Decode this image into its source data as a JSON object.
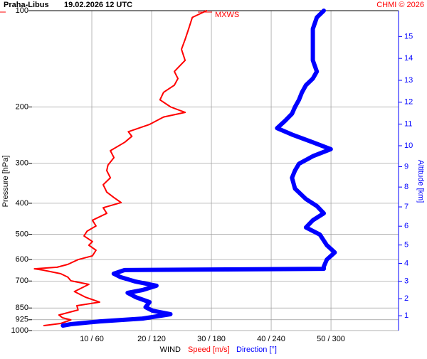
{
  "chart_data": {
    "type": "wind-profile",
    "title": "Praha-Libus",
    "subtitle": "19.02.2026 12 UTC",
    "credit": "CHMI © 2026",
    "annotation": "MXWS",
    "y_label": "Pressure [hPa]",
    "y2_label": "Altitude [km]",
    "x_label": "WIND",
    "ylim": [
      1000,
      100
    ],
    "log_y": true,
    "yticks": [
      100,
      200,
      300,
      400,
      500,
      600,
      700,
      850,
      925,
      1000
    ],
    "y2ticks": [
      1,
      2,
      3,
      4,
      5,
      6,
      7,
      8,
      9,
      10,
      11,
      12,
      13,
      14,
      15
    ],
    "xlim": [
      0,
      61.3
    ],
    "x2lim": [
      0,
      368
    ],
    "xticks": [
      {
        "value": 10,
        "label": "10 / 60"
      },
      {
        "value": 20,
        "label": "20 / 120"
      },
      {
        "value": 30,
        "label": "30 / 180"
      },
      {
        "value": 40,
        "label": "40 / 240"
      },
      {
        "value": 50,
        "label": "50 / 300"
      }
    ],
    "grid": true,
    "series": [
      {
        "name": "Speed [m/s]",
        "color": "#ff0000",
        "axis": "x",
        "pressure": [
          965,
          950,
          926,
          912,
          894,
          862,
          836,
          815,
          786,
          755,
          717,
          699,
          681,
          664,
          647,
          641,
          634,
          621,
          600,
          584,
          561,
          541,
          527,
          506,
          489,
          471,
          452,
          430,
          413,
          398,
          384,
          369,
          350,
          333,
          316,
          304,
          288,
          274,
          258,
          247,
          239,
          227,
          215,
          208,
          200,
          190,
          180,
          171,
          163,
          155,
          143,
          132,
          123,
          114,
          105,
          100
        ],
        "values": [
          2.0,
          4.8,
          6.5,
          5.1,
          4.5,
          7.7,
          7.5,
          11.3,
          8.9,
          7.1,
          9.5,
          6.5,
          6.0,
          4.8,
          1.8,
          0.4,
          4.2,
          6.0,
          7.7,
          10.1,
          10.7,
          9.5,
          10.1,
          8.7,
          9.2,
          10.7,
          10.1,
          12.5,
          11.9,
          14.9,
          13.7,
          12.5,
          11.9,
          13.1,
          12.5,
          12.7,
          13.7,
          13.1,
          15.5,
          16.7,
          16.1,
          19.6,
          22.0,
          25.6,
          23.2,
          21.4,
          22.0,
          23.8,
          24.4,
          23.8,
          25.6,
          25.0,
          25.6,
          26.2,
          26.8,
          29.2
        ]
      },
      {
        "name": "Direction [°]",
        "color": "#0000ff",
        "axis": "x2",
        "pressure": [
          965,
          955,
          936,
          917,
          889,
          867,
          845,
          815,
          786,
          762,
          747,
          724,
          703,
          681,
          664,
          647,
          641,
          631,
          600,
          570,
          541,
          501,
          476,
          452,
          430,
          408,
          388,
          360,
          333,
          316,
          301,
          285,
          271,
          258,
          244,
          233,
          221,
          210,
          200,
          190,
          180,
          171,
          163,
          155,
          143,
          132,
          123,
          114,
          105,
          100
        ],
        "values": [
          31,
          39,
          68,
          111,
          139,
          121,
          114,
          118,
          104,
          96,
          111,
          125,
          104,
          89,
          82,
          93,
          293,
          293,
          296,
          304,
          296,
          289,
          275,
          282,
          293,
          286,
          275,
          264,
          261,
          264,
          268,
          282,
          300,
          282,
          261,
          246,
          254,
          261,
          264,
          268,
          271,
          275,
          282,
          286,
          282,
          282,
          282,
          282,
          286,
          293
        ]
      }
    ]
  }
}
